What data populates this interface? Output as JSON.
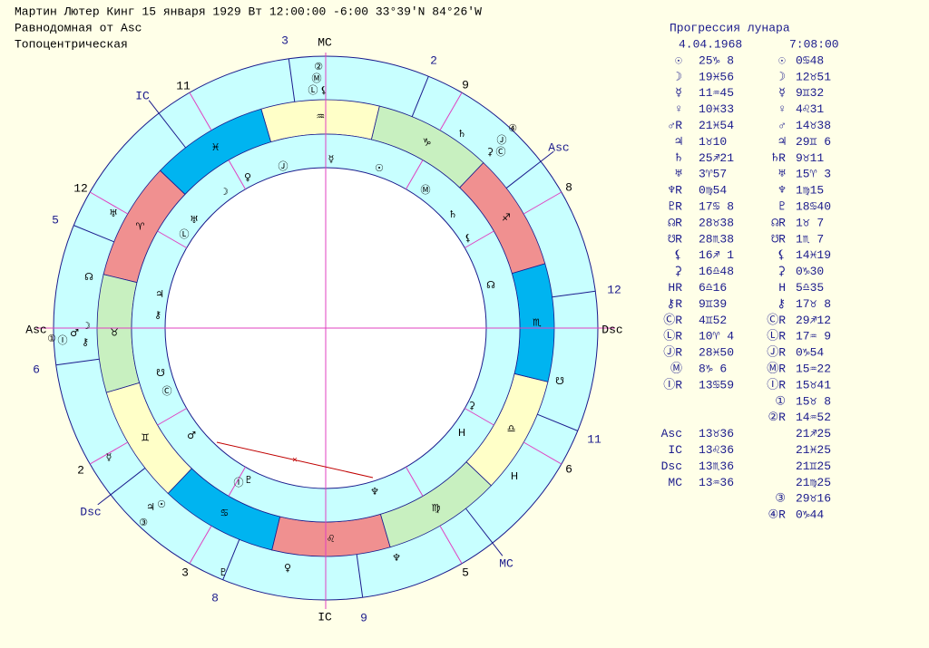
{
  "header": {
    "lines": [
      "Мартин Лютер Кинг  15 января 1929  Вт  12:00:00 -6:00 33°39'N  84°26'W",
      "Равнодомная от Asc",
      "Топоцентрическая"
    ]
  },
  "panel": {
    "title": "Прогрессия лунара",
    "date": "4.04.1968",
    "time": "7:08:00",
    "rows": [
      [
        "☉",
        "25♑ 8",
        "☉",
        "0♋48"
      ],
      [
        "☽",
        "19♓56",
        "☽",
        "12♉51"
      ],
      [
        "☿",
        "11♒45",
        "☿",
        "9♊32"
      ],
      [
        "♀",
        "10♓33",
        "♀",
        "4♌31"
      ],
      [
        "♂R",
        "21♓54",
        "♂",
        "14♉38"
      ],
      [
        "♃",
        "1♉10",
        "♃",
        "29♊ 6"
      ],
      [
        "♄",
        "25♐21",
        "♄R",
        "9♉11"
      ],
      [
        "♅",
        "3♈57",
        "♅",
        "15♈ 3"
      ],
      [
        "♆R",
        "0♍54",
        "♆",
        "1♍15"
      ],
      [
        "♇R",
        "17♋ 8",
        "♇",
        "18♋40"
      ],
      [
        "☊R",
        "28♉38",
        "☊R",
        "1♉ 7"
      ],
      [
        "☋R",
        "28♏38",
        "☋R",
        "1♏ 7"
      ],
      [
        "⚸",
        "16♐ 1",
        "⚸",
        "14♓19"
      ],
      [
        "⚳",
        "16♎48",
        "⚳",
        "0♑30"
      ],
      [
        "HR",
        "6♎16",
        "H",
        "5♎35"
      ],
      [
        "⚷R",
        "9♊39",
        "⚷",
        "17♉ 8"
      ],
      [
        "ⒸR",
        "4♊52",
        "ⒸR",
        "29♐12"
      ],
      [
        "ⓁR",
        "10♈ 4",
        "ⓁR",
        "17♒ 9"
      ],
      [
        "ⒿR",
        "28♓50",
        "ⒿR",
        "0♑54"
      ],
      [
        "Ⓜ",
        "8♑ 6",
        "ⓂR",
        "15♒22"
      ],
      [
        "ⒾR",
        "13♋59",
        "ⒾR",
        "15♉41"
      ],
      [
        null,
        null,
        "①",
        "15♉ 8"
      ],
      [
        null,
        null,
        "②R",
        "14♒52"
      ],
      [
        "Asc",
        "13♉36",
        null,
        "21♐25"
      ],
      [
        "IC",
        "13♌36",
        null,
        "21♓25"
      ],
      [
        "Dsc",
        "13♏36",
        null,
        "21♊25"
      ],
      [
        "MC",
        "13♒36",
        null,
        "21♍25"
      ],
      [
        null,
        null,
        "③",
        "29♉16"
      ],
      [
        null,
        null,
        "④R",
        "0♑44"
      ]
    ]
  },
  "wheel": {
    "zodiac": [
      {
        "sign": "♈",
        "color": "#f09090"
      },
      {
        "sign": "♉",
        "color": "#c8f0c0"
      },
      {
        "sign": "♊",
        "color": "#ffffc8"
      },
      {
        "sign": "♋",
        "color": "#00b4f0"
      },
      {
        "sign": "♌",
        "color": "#f09090"
      },
      {
        "sign": "♍",
        "color": "#c8f0c0"
      },
      {
        "sign": "♎",
        "color": "#ffffc8"
      },
      {
        "sign": "♏",
        "color": "#00b4f0"
      },
      {
        "sign": "♐",
        "color": "#f09090"
      },
      {
        "sign": "♑",
        "color": "#c8f0c0"
      },
      {
        "sign": "♒",
        "color": "#ffffc8"
      },
      {
        "sign": "♓",
        "color": "#00b4f0"
      }
    ],
    "axes": [
      "MC",
      "Dsc",
      "IC",
      "Asc"
    ],
    "progressed_axes": [
      "Asc",
      "MC",
      "Dsc",
      "IC"
    ],
    "house_numbers": [
      "11",
      "12",
      "9",
      "8",
      "6",
      "5",
      "3",
      "2"
    ],
    "progressed_house_numbers": [
      "3",
      "2",
      "12",
      "11",
      "9",
      "8",
      "6",
      "5"
    ],
    "natal_glyphs": [
      "☿",
      "Ⓙ",
      "♀",
      "☽",
      "♅",
      "Ⓛ",
      "♃",
      "⚷",
      "☋",
      "Ⓒ",
      "♂",
      "Ⓘ",
      "♇",
      "♆",
      "H",
      "⚳",
      "☊",
      "⚸",
      "♄",
      "Ⓜ",
      "☉"
    ],
    "progressed_glyphs": [
      "②",
      "Ⓜ",
      "Ⓛ",
      "⚸",
      "④",
      "Ⓙ",
      "⚳",
      "Ⓒ",
      "♄",
      "♅",
      "☊",
      "☽",
      "①",
      "Ⓘ",
      "♂",
      "⚷",
      "☿",
      "♃",
      "③",
      "☉",
      "♇",
      "♀",
      "♆",
      "H",
      "☋"
    ]
  }
}
